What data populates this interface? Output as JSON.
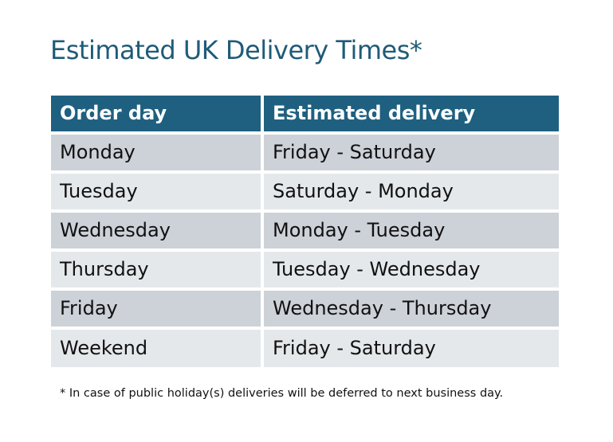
{
  "title": "Estimated UK Delivery Times*",
  "table": {
    "headers": [
      "Order day",
      "Estimated delivery"
    ],
    "rows": [
      [
        "Monday",
        "Friday - Saturday"
      ],
      [
        "Tuesday",
        "Saturday - Monday"
      ],
      [
        "Wednesday",
        "Monday - Tuesday"
      ],
      [
        "Thursday",
        "Tuesday - Wednesday"
      ],
      [
        "Friday",
        "Wednesday - Thursday"
      ],
      [
        "Weekend",
        "Friday - Saturday"
      ]
    ]
  },
  "footnote": "* In case of public holiday(s) deliveries will be deferred to next business day.",
  "colors": {
    "header": "#1f6080",
    "row_odd": "#cdd1d8",
    "row_even": "#e5e8eb",
    "title": "#1f5b78"
  }
}
